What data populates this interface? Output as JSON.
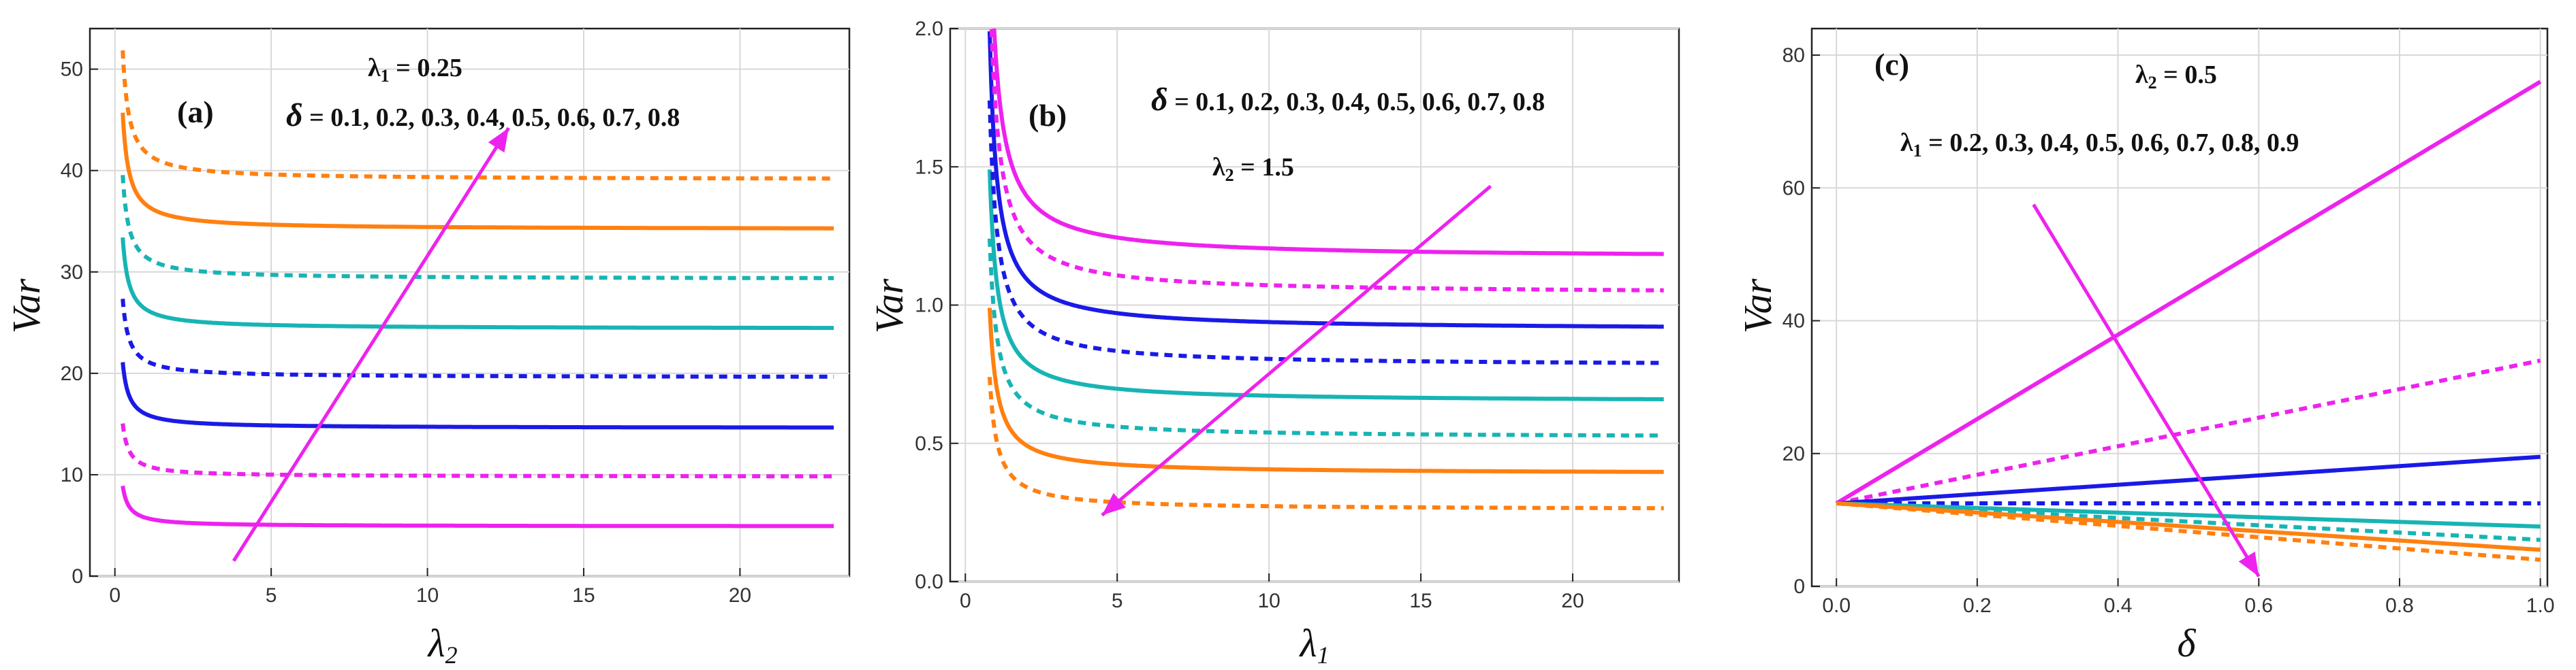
{
  "chart_data": [
    {
      "type": "line",
      "panel": "(a)",
      "xlabel": "λ2",
      "ylabel": "Var",
      "xlim": [
        -0.8,
        23.5
      ],
      "ylim": [
        0,
        54
      ],
      "xticks": [
        0,
        5,
        10,
        15,
        20
      ],
      "yticks": [
        0,
        10,
        20,
        30,
        40,
        50
      ],
      "tick_labels_x": [
        "0",
        "5",
        "10",
        "15",
        "20"
      ],
      "tick_labels_y": [
        "0",
        "10",
        "20",
        "30",
        "40",
        "50"
      ],
      "annotations": [
        "λ1 = 0.25",
        "δ = 0.1, 0.2, 0.3, 0.4, 0.5, 0.6, 0.7, 0.8"
      ],
      "arrow": {
        "from": [
          3.8,
          1.5
        ],
        "to": [
          12.6,
          44.2
        ],
        "color": "#ee22ee"
      },
      "x_range": [
        0.25,
        23
      ],
      "series": [
        {
          "name": "δ = 0.1",
          "asymptote": 4.9,
          "color": "#ee22ee",
          "dash": "solid"
        },
        {
          "name": "δ = 0.2",
          "asymptote": 9.8,
          "color": "#ee22ee",
          "dash": "dot"
        },
        {
          "name": "δ = 0.3",
          "asymptote": 14.6,
          "color": "#1a1ae6",
          "dash": "solid"
        },
        {
          "name": "δ = 0.4",
          "asymptote": 19.6,
          "color": "#1a1ae6",
          "dash": "dot"
        },
        {
          "name": "δ = 0.5",
          "asymptote": 24.4,
          "color": "#18b4b4",
          "dash": "solid"
        },
        {
          "name": "δ = 0.6",
          "asymptote": 29.3,
          "color": "#18b4b4",
          "dash": "dot"
        },
        {
          "name": "δ = 0.7",
          "asymptote": 34.2,
          "color": "#ff8010",
          "dash": "solid"
        },
        {
          "name": "δ = 0.8",
          "asymptote": 39.1,
          "color": "#ff8010",
          "dash": "dot"
        }
      ]
    },
    {
      "type": "line",
      "panel": "(b)",
      "xlabel": "λ1",
      "ylabel": "Var",
      "xlim": [
        -0.5,
        23.5
      ],
      "ylim": [
        0,
        2.0
      ],
      "xticks": [
        0,
        5,
        10,
        15,
        20
      ],
      "yticks": [
        0.0,
        0.5,
        1.0,
        1.5,
        2.0
      ],
      "tick_labels_x": [
        "0",
        "5",
        "10",
        "15",
        "20"
      ],
      "tick_labels_y": [
        "0.0",
        "0.5",
        "1.0",
        "1.5",
        "2.0"
      ],
      "annotations": [
        "δ = 0.1, 0.2, 0.3, 0.4, 0.5, 0.6, 0.7, 0.8",
        "λ2 = 1.5"
      ],
      "arrow": {
        "from": [
          17.3,
          1.43
        ],
        "to": [
          4.5,
          0.24
        ],
        "color": "#ee22ee"
      },
      "x_range": [
        0.8,
        23
      ],
      "series": [
        {
          "name": "δ = 0.1",
          "asymptote": 0.26,
          "color": "#ff8010",
          "dash": "dot"
        },
        {
          "name": "δ = 0.2",
          "asymptote": 0.39,
          "color": "#ff8010",
          "dash": "solid"
        },
        {
          "name": "δ = 0.3",
          "asymptote": 0.52,
          "color": "#18b4b4",
          "dash": "dot"
        },
        {
          "name": "δ = 0.4",
          "asymptote": 0.65,
          "color": "#18b4b4",
          "dash": "solid"
        },
        {
          "name": "δ = 0.5",
          "asymptote": 0.78,
          "color": "#1a1ae6",
          "dash": "dot"
        },
        {
          "name": "δ = 0.6",
          "asymptote": 0.91,
          "color": "#1a1ae6",
          "dash": "solid"
        },
        {
          "name": "δ = 0.7",
          "asymptote": 1.04,
          "color": "#ee22ee",
          "dash": "dot"
        },
        {
          "name": "δ = 0.8",
          "asymptote": 1.17,
          "color": "#ee22ee",
          "dash": "solid"
        }
      ]
    },
    {
      "type": "line",
      "panel": "(c)",
      "xlabel": "δ",
      "ylabel": "Var",
      "xlim": [
        -0.035,
        1.01
      ],
      "ylim": [
        0,
        84
      ],
      "xticks": [
        0.0,
        0.2,
        0.4,
        0.6,
        0.8,
        1.0
      ],
      "yticks": [
        0,
        20,
        40,
        60,
        80
      ],
      "tick_labels_x": [
        "0.0",
        "0.2",
        "0.4",
        "0.6",
        "0.8",
        "1.0"
      ],
      "tick_labels_y": [
        "0",
        "20",
        "40",
        "60",
        "80"
      ],
      "annotations": [
        "λ2 = 0.5",
        "λ1 = 0.2, 0.3, 0.4, 0.5, 0.6, 0.7, 0.8, 0.9"
      ],
      "arrow": {
        "from": [
          0.28,
          57.5
        ],
        "to": [
          0.6,
          1.5
        ],
        "color": "#ee22ee"
      },
      "series": [
        {
          "name": "λ1 = 0.2",
          "x": [
            0,
            1
          ],
          "y": [
            12.5,
            76
          ],
          "color": "#ee22ee",
          "dash": "solid"
        },
        {
          "name": "λ1 = 0.3",
          "x": [
            0,
            1
          ],
          "y": [
            12.5,
            34
          ],
          "color": "#ee22ee",
          "dash": "dot"
        },
        {
          "name": "λ1 = 0.4",
          "x": [
            0,
            1
          ],
          "y": [
            12.5,
            19.5
          ],
          "color": "#1a1ae6",
          "dash": "solid"
        },
        {
          "name": "λ1 = 0.5",
          "x": [
            0,
            1
          ],
          "y": [
            12.5,
            12.5
          ],
          "color": "#1a1ae6",
          "dash": "dot"
        },
        {
          "name": "λ1 = 0.6",
          "x": [
            0,
            1
          ],
          "y": [
            12.5,
            9
          ],
          "color": "#18b4b4",
          "dash": "solid"
        },
        {
          "name": "λ1 = 0.7",
          "x": [
            0,
            1
          ],
          "y": [
            12.5,
            7
          ],
          "color": "#18b4b4",
          "dash": "dot"
        },
        {
          "name": "λ1 = 0.8",
          "x": [
            0,
            1
          ],
          "y": [
            12.5,
            5.5
          ],
          "color": "#ff8010",
          "dash": "solid"
        },
        {
          "name": "λ1 = 0.9",
          "x": [
            0,
            1
          ],
          "y": [
            12.5,
            4
          ],
          "color": "#ff8010",
          "dash": "dot"
        }
      ]
    }
  ]
}
